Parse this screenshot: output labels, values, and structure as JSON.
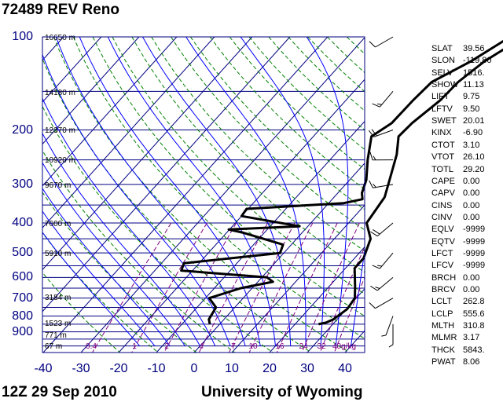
{
  "header": {
    "title": "72489 REV Reno"
  },
  "footer": {
    "time": "12Z 29 Sep 2010",
    "source": "University of Wyoming"
  },
  "chart_data": {
    "type": "skew-t log-p sounding",
    "pressure_ticks": [
      100,
      200,
      300,
      400,
      500,
      600,
      700,
      800,
      900
    ],
    "temperature_ticks": [
      -40,
      -30,
      -20,
      -10,
      0,
      10,
      20,
      30,
      40
    ],
    "height_labels": [
      "16650 m",
      "14180 m",
      "12370 m",
      "10920 m",
      "9670 m",
      "7600 m",
      "5910 m",
      "3184 m",
      "1523 m",
      "771 m",
      "67 m"
    ],
    "mixing_ratio_labels": [
      "0.4",
      "1",
      "2",
      "4",
      "7",
      "10",
      "16",
      "24",
      "32",
      "40g/kg"
    ],
    "grid": true,
    "temperature_profile": [
      {
        "p": 100,
        "t": 14.8
      },
      {
        "p": 110,
        "t": 9.6
      },
      {
        "p": 120,
        "t": 7.4
      },
      {
        "p": 140,
        "t": 5.4
      },
      {
        "p": 160,
        "t": 5.0
      },
      {
        "p": 190,
        "t": 3.0
      },
      {
        "p": 210,
        "t": 2.6
      },
      {
        "p": 240,
        "t": 6.4
      },
      {
        "p": 280,
        "t": 9.8
      },
      {
        "p": 330,
        "t": 13.4
      },
      {
        "p": 400,
        "t": 14.8
      },
      {
        "p": 450,
        "t": 19.6
      },
      {
        "p": 520,
        "t": 22.4
      },
      {
        "p": 560,
        "t": 22.4
      },
      {
        "p": 640,
        "t": 26.8
      },
      {
        "p": 700,
        "t": 29.6
      },
      {
        "p": 760,
        "t": 30.2
      },
      {
        "p": 820,
        "t": 29.0
      },
      {
        "p": 840,
        "t": 27.8
      },
      {
        "p": 850,
        "t": 26.2
      }
    ],
    "dewpoint_profile": [
      {
        "p": 100,
        "t": 8.4
      },
      {
        "p": 120,
        "t": 3.8
      },
      {
        "p": 140,
        "t": -1.6
      },
      {
        "p": 160,
        "t": -2.2
      },
      {
        "p": 190,
        "t": -2.4
      },
      {
        "p": 210,
        "t": -4.6
      },
      {
        "p": 250,
        "t": 0.0
      },
      {
        "p": 290,
        "t": 4.4
      },
      {
        "p": 320,
        "t": 6.4
      },
      {
        "p": 335,
        "t": 8.0
      },
      {
        "p": 345,
        "t": 4.0
      },
      {
        "p": 360,
        "t": -20.4
      },
      {
        "p": 380,
        "t": -20.0
      },
      {
        "p": 410,
        "t": -2.2
      },
      {
        "p": 420,
        "t": -20.2
      },
      {
        "p": 430,
        "t": -15.6
      },
      {
        "p": 470,
        "t": -2.2
      },
      {
        "p": 500,
        "t": -1.0
      },
      {
        "p": 540,
        "t": -24.0
      },
      {
        "p": 570,
        "t": -23.0
      },
      {
        "p": 600,
        "t": 1.4
      },
      {
        "p": 620,
        "t": 4.0
      },
      {
        "p": 650,
        "t": -3.0
      },
      {
        "p": 700,
        "t": -9.0
      },
      {
        "p": 750,
        "t": -5.0
      },
      {
        "p": 820,
        "t": -4.0
      },
      {
        "p": 850,
        "t": -2.6
      }
    ],
    "wind_profile": [
      {
        "p": 100,
        "dir": 240,
        "spd": 10
      },
      {
        "p": 150,
        "dir": 220,
        "spd": 15
      },
      {
        "p": 200,
        "dir": 250,
        "spd": 20
      },
      {
        "p": 250,
        "dir": 270,
        "spd": 15
      },
      {
        "p": 300,
        "dir": 260,
        "spd": 15
      },
      {
        "p": 400,
        "dir": 230,
        "spd": 20
      },
      {
        "p": 500,
        "dir": 220,
        "spd": 15
      },
      {
        "p": 600,
        "dir": 230,
        "spd": 15
      },
      {
        "p": 700,
        "dir": 240,
        "spd": 10
      },
      {
        "p": 800,
        "dir": 200,
        "spd": 5
      },
      {
        "p": 850,
        "dir": 180,
        "spd": 5
      }
    ]
  },
  "indices": [
    {
      "name": "SLAT",
      "value": "39.56"
    },
    {
      "name": "SLON",
      "value": "-119.80"
    },
    {
      "name": "SELV",
      "value": "1516."
    },
    {
      "name": "SHOW",
      "value": "11.13"
    },
    {
      "name": "LIFT",
      "value": "9.75"
    },
    {
      "name": "LFTV",
      "value": "9.50"
    },
    {
      "name": "SWET",
      "value": "20.01"
    },
    {
      "name": "KINX",
      "value": "-6.90"
    },
    {
      "name": "CTOT",
      "value": "3.10"
    },
    {
      "name": "VTOT",
      "value": "26.10"
    },
    {
      "name": "TOTL",
      "value": "29.20"
    },
    {
      "name": "CAPE",
      "value": "0.00"
    },
    {
      "name": "CAPV",
      "value": "0.00"
    },
    {
      "name": "CINS",
      "value": "0.00"
    },
    {
      "name": "CINV",
      "value": "0.00"
    },
    {
      "name": "EQLV",
      "value": "-9999"
    },
    {
      "name": "EQTV",
      "value": "-9999"
    },
    {
      "name": "LFCT",
      "value": "-9999"
    },
    {
      "name": "LFCV",
      "value": "-9999"
    },
    {
      "name": "BRCH",
      "value": "0.00"
    },
    {
      "name": "BRCV",
      "value": "0.00"
    },
    {
      "name": "LCLT",
      "value": "262.8"
    },
    {
      "name": "LCLP",
      "value": "555.6"
    },
    {
      "name": "MLTH",
      "value": "310.8"
    },
    {
      "name": "MLMR",
      "value": "3.17"
    },
    {
      "name": "THCK",
      "value": "5843."
    },
    {
      "name": "PWAT",
      "value": "8.06"
    }
  ],
  "colors": {
    "isobar": "#000080",
    "isotherm": "#000080",
    "dry_adiabat": "#008000",
    "moist_adiabat": "#0000ff",
    "mixing_ratio": "#800080",
    "profile": "#000000",
    "axis_label": "#000080"
  }
}
